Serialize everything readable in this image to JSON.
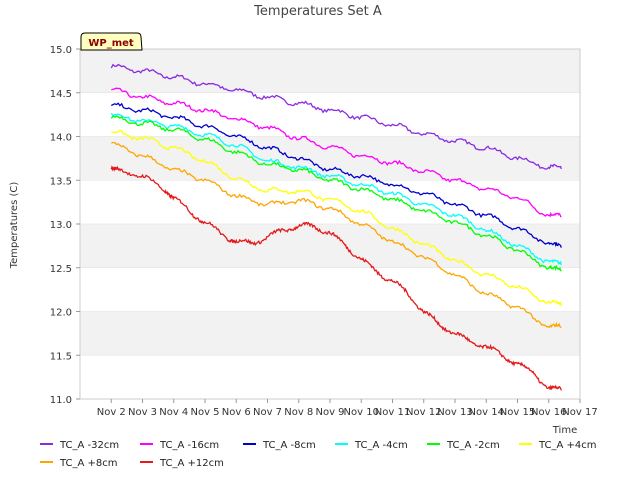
{
  "chart_data": {
    "type": "line",
    "title": "Temperatures Set A",
    "xlabel": "Time",
    "ylabel": "Temperatures (C)",
    "badge": "WP_met",
    "xlim": [
      1,
      17
    ],
    "ylim": [
      11.0,
      15.0
    ],
    "x_ticks": [
      {
        "value": 2,
        "label": "Nov 2"
      },
      {
        "value": 3,
        "label": "Nov 3"
      },
      {
        "value": 4,
        "label": "Nov 4"
      },
      {
        "value": 5,
        "label": "Nov 5"
      },
      {
        "value": 6,
        "label": "Nov 6"
      },
      {
        "value": 7,
        "label": "Nov 7"
      },
      {
        "value": 8,
        "label": "Nov 8"
      },
      {
        "value": 9,
        "label": "Nov 9"
      },
      {
        "value": 10,
        "label": "Nov 10"
      },
      {
        "value": 11,
        "label": "Nov 11"
      },
      {
        "value": 12,
        "label": "Nov 12"
      },
      {
        "value": 13,
        "label": "Nov 13"
      },
      {
        "value": 14,
        "label": "Nov 14"
      },
      {
        "value": 15,
        "label": "Nov 15"
      },
      {
        "value": 16,
        "label": "Nov 16"
      },
      {
        "value": 17,
        "label": "Nov 17"
      }
    ],
    "y_ticks": [
      {
        "value": 11.0,
        "label": "11.0"
      },
      {
        "value": 11.5,
        "label": "11.5"
      },
      {
        "value": 12.0,
        "label": "12.0"
      },
      {
        "value": 12.5,
        "label": "12.5"
      },
      {
        "value": 13.0,
        "label": "13.0"
      },
      {
        "value": 13.5,
        "label": "13.5"
      },
      {
        "value": 14.0,
        "label": "14.0"
      },
      {
        "value": 14.5,
        "label": "14.5"
      },
      {
        "value": 15.0,
        "label": "15.0"
      }
    ],
    "grid": "horizontal bands",
    "legend_position": "bottom",
    "series": [
      {
        "name": "TC_A -32cm",
        "color": "#8a2be2",
        "x": [
          2,
          3,
          4,
          5,
          6,
          7,
          8,
          9,
          10,
          11,
          12,
          13,
          14,
          15,
          16,
          16.4
        ],
        "y": [
          14.8,
          14.75,
          14.68,
          14.6,
          14.53,
          14.45,
          14.38,
          14.3,
          14.22,
          14.13,
          14.03,
          13.95,
          13.87,
          13.75,
          13.65,
          13.63
        ]
      },
      {
        "name": "TC_A -16cm",
        "color": "#ff00ff",
        "x": [
          2,
          3,
          4,
          5,
          6,
          7,
          8,
          9,
          10,
          11,
          12,
          13,
          14,
          15,
          16,
          16.4
        ],
        "y": [
          14.53,
          14.45,
          14.38,
          14.3,
          14.2,
          14.1,
          13.98,
          13.88,
          13.78,
          13.7,
          13.6,
          13.5,
          13.4,
          13.3,
          13.1,
          13.08
        ]
      },
      {
        "name": "TC_A -8cm",
        "color": "#0000cd",
        "x": [
          2,
          3,
          4,
          5,
          6,
          7,
          8,
          9,
          10,
          11,
          12,
          13,
          14,
          15,
          16,
          16.4
        ],
        "y": [
          14.35,
          14.3,
          14.22,
          14.12,
          14.0,
          13.87,
          13.75,
          13.62,
          13.55,
          13.45,
          13.35,
          13.22,
          13.1,
          12.95,
          12.78,
          12.73
        ]
      },
      {
        "name": "TC_A -4cm",
        "color": "#00ffff",
        "x": [
          2,
          3,
          4,
          5,
          6,
          7,
          8,
          9,
          10,
          11,
          12,
          13,
          14,
          15,
          16,
          16.4
        ],
        "y": [
          14.25,
          14.18,
          14.12,
          14.02,
          13.9,
          13.72,
          13.65,
          13.55,
          13.45,
          13.35,
          13.22,
          13.1,
          12.93,
          12.75,
          12.57,
          12.53
        ]
      },
      {
        "name": "TC_A -2cm",
        "color": "#00ff00",
        "x": [
          2,
          3,
          4,
          5,
          6,
          7,
          8,
          9,
          10,
          11,
          12,
          13,
          14,
          15,
          16,
          16.4
        ],
        "y": [
          14.22,
          14.15,
          14.08,
          13.97,
          13.82,
          13.68,
          13.62,
          13.5,
          13.4,
          13.28,
          13.15,
          13.02,
          12.87,
          12.7,
          12.5,
          12.46
        ]
      },
      {
        "name": "TC_A +4cm",
        "color": "#ffff00",
        "x": [
          2,
          3,
          4,
          5,
          6,
          7,
          8,
          9,
          10,
          11,
          12,
          13,
          14,
          15,
          16,
          16.4
        ],
        "y": [
          14.05,
          13.98,
          13.87,
          13.72,
          13.52,
          13.38,
          13.38,
          13.28,
          13.15,
          12.95,
          12.77,
          12.58,
          12.42,
          12.28,
          12.1,
          12.07
        ]
      },
      {
        "name": "TC_A +8cm",
        "color": "#ffa500",
        "x": [
          2,
          3,
          4,
          5,
          6,
          7,
          8,
          9,
          10,
          11,
          12,
          13,
          14,
          15,
          16,
          16.4
        ],
        "y": [
          13.92,
          13.78,
          13.62,
          13.5,
          13.32,
          13.22,
          13.27,
          13.18,
          13.0,
          12.8,
          12.62,
          12.42,
          12.2,
          12.05,
          11.82,
          11.82
        ]
      },
      {
        "name": "TC_A +12cm",
        "color": "#e41a1c",
        "x": [
          2,
          2.3,
          3,
          3.7,
          4,
          4.6,
          5,
          5.7,
          6,
          6.5,
          7,
          7.5,
          8,
          8.5,
          9,
          9.5,
          10,
          10.5,
          11,
          11.5,
          12,
          12.5,
          13,
          13.5,
          14,
          14.5,
          15,
          15.5,
          16,
          16.4
        ],
        "y": [
          13.63,
          13.6,
          13.55,
          13.4,
          13.3,
          13.12,
          13.02,
          12.85,
          12.8,
          12.78,
          12.85,
          12.93,
          12.98,
          12.97,
          12.9,
          12.75,
          12.6,
          12.45,
          12.35,
          12.2,
          12.0,
          11.85,
          11.75,
          11.65,
          11.6,
          11.5,
          11.4,
          11.3,
          11.12,
          11.1
        ]
      }
    ]
  }
}
